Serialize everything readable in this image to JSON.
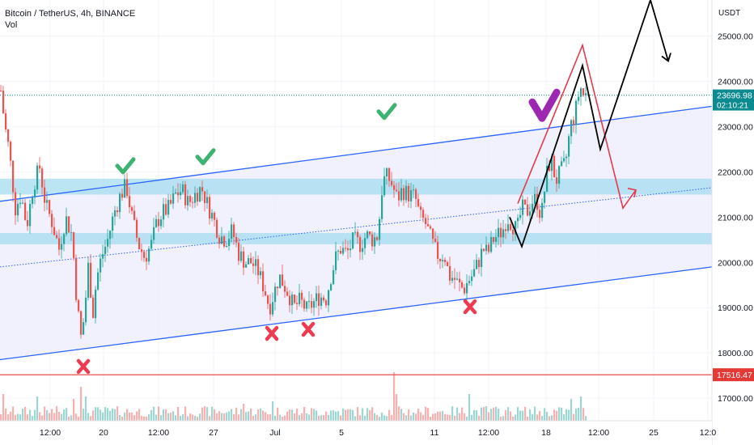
{
  "header": {
    "symbol": "Bitcoin / TetherUS, 4h, BINANCE",
    "volume_label": "Vol"
  },
  "colors": {
    "up": "#26a69a",
    "down": "#ef5350",
    "channel": "#2962ff",
    "support_zone": "#a5dcf0",
    "channel_fill": "#eef0fc",
    "support_line": "#e53935",
    "price_tag": "#0b8a8f",
    "check_green": "#3cb371",
    "check_purple": "#9c27b0",
    "cross_red": "#ef3b50",
    "projection_red": "#e8394a",
    "projection_black": "#000000"
  },
  "chart_data": {
    "type": "candlestick",
    "title": "Bitcoin / TetherUS, 4h, BINANCE",
    "ylabel": "USDT",
    "ylim": [
      16500,
      25800
    ],
    "y_ticks": [
      17000,
      18000,
      19000,
      20000,
      21000,
      22000,
      23000,
      24000,
      25000
    ],
    "y_tick_labels": [
      "17000.00",
      "18000.00",
      "19000.00",
      "20000.00",
      "21000.00",
      "22000.00",
      "23000.00",
      "24000.00",
      "25000.00"
    ],
    "x_tick_labels": [
      "12:00",
      "20",
      "12:00",
      "27",
      "Jul",
      "5",
      "11",
      "12:00",
      "18",
      "12:00",
      "25",
      "12:0"
    ],
    "current_price": 23696.98,
    "current_price_label": "23696.98",
    "countdown_label": "02:10:21",
    "support_price": 17516.47,
    "support_price_label": "17516.47",
    "grid": true,
    "series": [
      {
        "kind": "candles",
        "close_path": [
          [
            0,
            23800
          ],
          [
            5,
            23000
          ],
          [
            10,
            22500
          ],
          [
            18,
            21200
          ],
          [
            25,
            21500
          ],
          [
            32,
            20800
          ],
          [
            40,
            21700
          ],
          [
            48,
            22100
          ],
          [
            55,
            21300
          ],
          [
            63,
            20900
          ],
          [
            72,
            20300
          ],
          [
            80,
            21000
          ],
          [
            88,
            20600
          ],
          [
            94,
            19100
          ],
          [
            99,
            18350
          ],
          [
            103,
            18800
          ],
          [
            108,
            19900
          ],
          [
            114,
            18900
          ],
          [
            118,
            19600
          ],
          [
            124,
            20100
          ],
          [
            132,
            20500
          ],
          [
            140,
            21100
          ],
          [
            148,
            21500
          ],
          [
            155,
            21700
          ],
          [
            162,
            21000
          ],
          [
            170,
            20400
          ],
          [
            178,
            20100
          ],
          [
            186,
            20400
          ],
          [
            193,
            20900
          ],
          [
            200,
            21100
          ],
          [
            208,
            21200
          ],
          [
            216,
            21500
          ],
          [
            224,
            21600
          ],
          [
            232,
            21300
          ],
          [
            240,
            21500
          ],
          [
            248,
            21650
          ],
          [
            255,
            21300
          ],
          [
            262,
            21000
          ],
          [
            270,
            20600
          ],
          [
            278,
            20500
          ],
          [
            286,
            20700
          ],
          [
            294,
            20200
          ],
          [
            302,
            20000
          ],
          [
            310,
            20000
          ],
          [
            318,
            19800
          ],
          [
            326,
            19400
          ],
          [
            332,
            19000
          ],
          [
            338,
            19350
          ],
          [
            344,
            19700
          ],
          [
            350,
            19500
          ],
          [
            356,
            19300
          ],
          [
            362,
            19000
          ],
          [
            370,
            19150
          ],
          [
            378,
            18950
          ],
          [
            386,
            19100
          ],
          [
            394,
            19250
          ],
          [
            402,
            19200
          ],
          [
            408,
            19700
          ],
          [
            414,
            20100
          ],
          [
            420,
            20300
          ],
          [
            428,
            20200
          ],
          [
            436,
            20500
          ],
          [
            444,
            20400
          ],
          [
            452,
            20600
          ],
          [
            460,
            20500
          ],
          [
            466,
            20600
          ],
          [
            472,
            21800
          ],
          [
            478,
            21900
          ],
          [
            484,
            21700
          ],
          [
            490,
            21400
          ],
          [
            496,
            21600
          ],
          [
            504,
            21500
          ],
          [
            512,
            21450
          ],
          [
            518,
            21000
          ],
          [
            524,
            20900
          ],
          [
            530,
            20600
          ],
          [
            536,
            20300
          ],
          [
            542,
            20100
          ],
          [
            548,
            20200
          ],
          [
            554,
            19700
          ],
          [
            560,
            19650
          ],
          [
            566,
            19500
          ],
          [
            572,
            19400
          ],
          [
            578,
            19600
          ],
          [
            584,
            19750
          ],
          [
            590,
            20000
          ],
          [
            596,
            20300
          ],
          [
            602,
            20200
          ],
          [
            608,
            20500
          ],
          [
            614,
            20600
          ],
          [
            620,
            20700
          ],
          [
            626,
            21000
          ],
          [
            632,
            20850
          ],
          [
            638,
            20700
          ],
          [
            644,
            21200
          ],
          [
            650,
            21100
          ],
          [
            656,
            21350
          ],
          [
            662,
            21400
          ],
          [
            668,
            21000
          ],
          [
            674,
            21900
          ],
          [
            680,
            22300
          ],
          [
            686,
            21800
          ],
          [
            692,
            22000
          ],
          [
            698,
            22200
          ],
          [
            704,
            23000
          ],
          [
            710,
            23300
          ],
          [
            716,
            23900
          ],
          [
            720,
            23700
          ],
          [
            724,
            23697
          ]
        ]
      },
      {
        "kind": "volume",
        "spikes": [
          {
            "time": 4,
            "level": 0.55
          },
          {
            "time": 45,
            "level": 0.5
          },
          {
            "time": 90,
            "level": 0.45
          },
          {
            "time": 99,
            "level": 0.7
          },
          {
            "time": 106,
            "level": 0.5
          },
          {
            "time": 300,
            "level": 0.35
          },
          {
            "time": 336,
            "level": 0.4
          },
          {
            "time": 485,
            "level": 1.0
          },
          {
            "time": 488,
            "level": 0.55
          },
          {
            "time": 578,
            "level": 0.55
          },
          {
            "time": 600,
            "level": 0.3
          },
          {
            "time": 705,
            "level": 0.45
          },
          {
            "time": 716,
            "level": 0.5
          }
        ]
      }
    ],
    "annotations": {
      "channel_upper": [
        [
          0,
          21350
        ],
        [
          880,
          23450
        ]
      ],
      "channel_mid": [
        [
          0,
          19900
        ],
        [
          880,
          21650
        ]
      ],
      "channel_lower": [
        [
          0,
          17850
        ],
        [
          880,
          19900
        ]
      ],
      "zones": [
        {
          "from": 21500,
          "to": 21850
        },
        {
          "from": 20400,
          "to": 20650
        }
      ],
      "checks_green": [
        [
          155,
          22100
        ],
        [
          254,
          22300
        ],
        [
          478,
          23300
        ]
      ],
      "check_purple": [
        [
          672,
          23400
        ]
      ],
      "crosses": [
        [
          103,
          17700
        ],
        [
          336,
          18430
        ],
        [
          381,
          18520
        ],
        [
          581,
          19020
        ]
      ],
      "projection_red": [
        [
          640,
          21300
        ],
        [
          720,
          24800
        ],
        [
          770,
          21200
        ],
        [
          786,
          21600
        ]
      ],
      "projection_black": [
        [
          630,
          21000
        ],
        [
          645,
          20350
        ],
        [
          720,
          24350
        ],
        [
          742,
          22500
        ],
        [
          804,
          25800
        ],
        [
          826,
          24450
        ]
      ]
    }
  }
}
